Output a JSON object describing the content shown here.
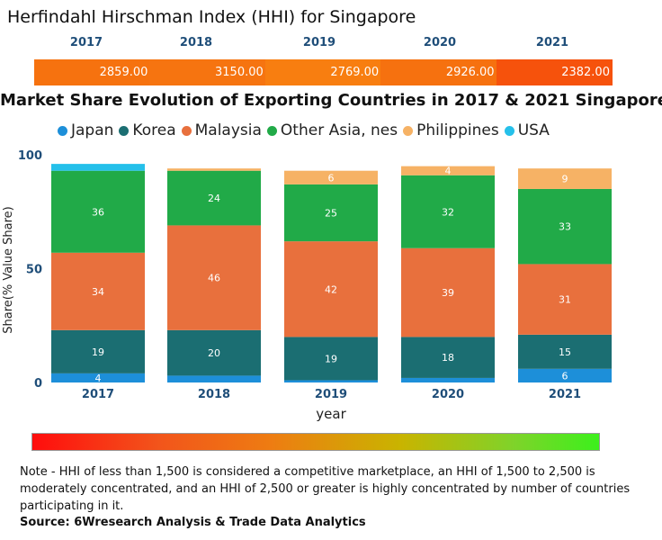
{
  "hhi": {
    "title": "Herfindahl Hirschman Index (HHI) for Singapore",
    "years": [
      "2017",
      "2018",
      "2019",
      "2020",
      "2021"
    ],
    "values": [
      "2859.00",
      "3150.00",
      "2769.00",
      "2926.00",
      "2382.00"
    ],
    "colors": [
      "#f6720f",
      "#f67410",
      "#f87e10",
      "#f6710f",
      "#f6520c"
    ]
  },
  "market": {
    "title": "Market Share Evolution of Exporting Countries in 2017 & 2021 Singapore"
  },
  "chart_data": {
    "type": "bar",
    "stacked": true,
    "categories": [
      "2017",
      "2018",
      "2019",
      "2020",
      "2021"
    ],
    "series": [
      {
        "name": "Japan",
        "color": "#1d8fd9",
        "values": [
          4,
          3,
          1,
          2,
          6
        ],
        "labels": [
          "4",
          "",
          "",
          "",
          "6"
        ]
      },
      {
        "name": "Korea",
        "color": "#1b6e72",
        "values": [
          19,
          20,
          19,
          18,
          15
        ],
        "labels": [
          "19",
          "20",
          "19",
          "18",
          "15"
        ]
      },
      {
        "name": "Malaysia",
        "color": "#e8703d",
        "values": [
          34,
          46,
          42,
          39,
          31
        ],
        "labels": [
          "34",
          "46",
          "42",
          "39",
          "31"
        ]
      },
      {
        "name": "Other Asia, nes",
        "color": "#21aa48",
        "values": [
          36,
          24,
          25,
          32,
          33
        ],
        "labels": [
          "36",
          "24",
          "25",
          "32",
          "33"
        ]
      },
      {
        "name": "Philippines",
        "color": "#f6b265",
        "values": [
          0,
          1,
          6,
          4,
          9
        ],
        "labels": [
          "",
          "",
          "6",
          "4",
          "9"
        ]
      },
      {
        "name": "USA",
        "color": "#25c0ea",
        "values": [
          3,
          0,
          0,
          0,
          0
        ],
        "labels": [
          "",
          "",
          "",
          "",
          ""
        ]
      }
    ],
    "xlabel": "year",
    "ylabel": "Share(% Value Share)",
    "ylim": [
      0,
      100
    ],
    "yticks": [
      "0",
      "50",
      "100"
    ]
  },
  "footer": {
    "note": "Note - HHI of less than 1,500 is considered a competitive marketplace, an HHI of 1,500 to 2,500 is moderately concentrated, and an HHI of 2,500 or greater is highly concentrated by number of countries participating in it.",
    "source": "Source: 6Wresearch Analysis & Trade Data Analytics"
  }
}
